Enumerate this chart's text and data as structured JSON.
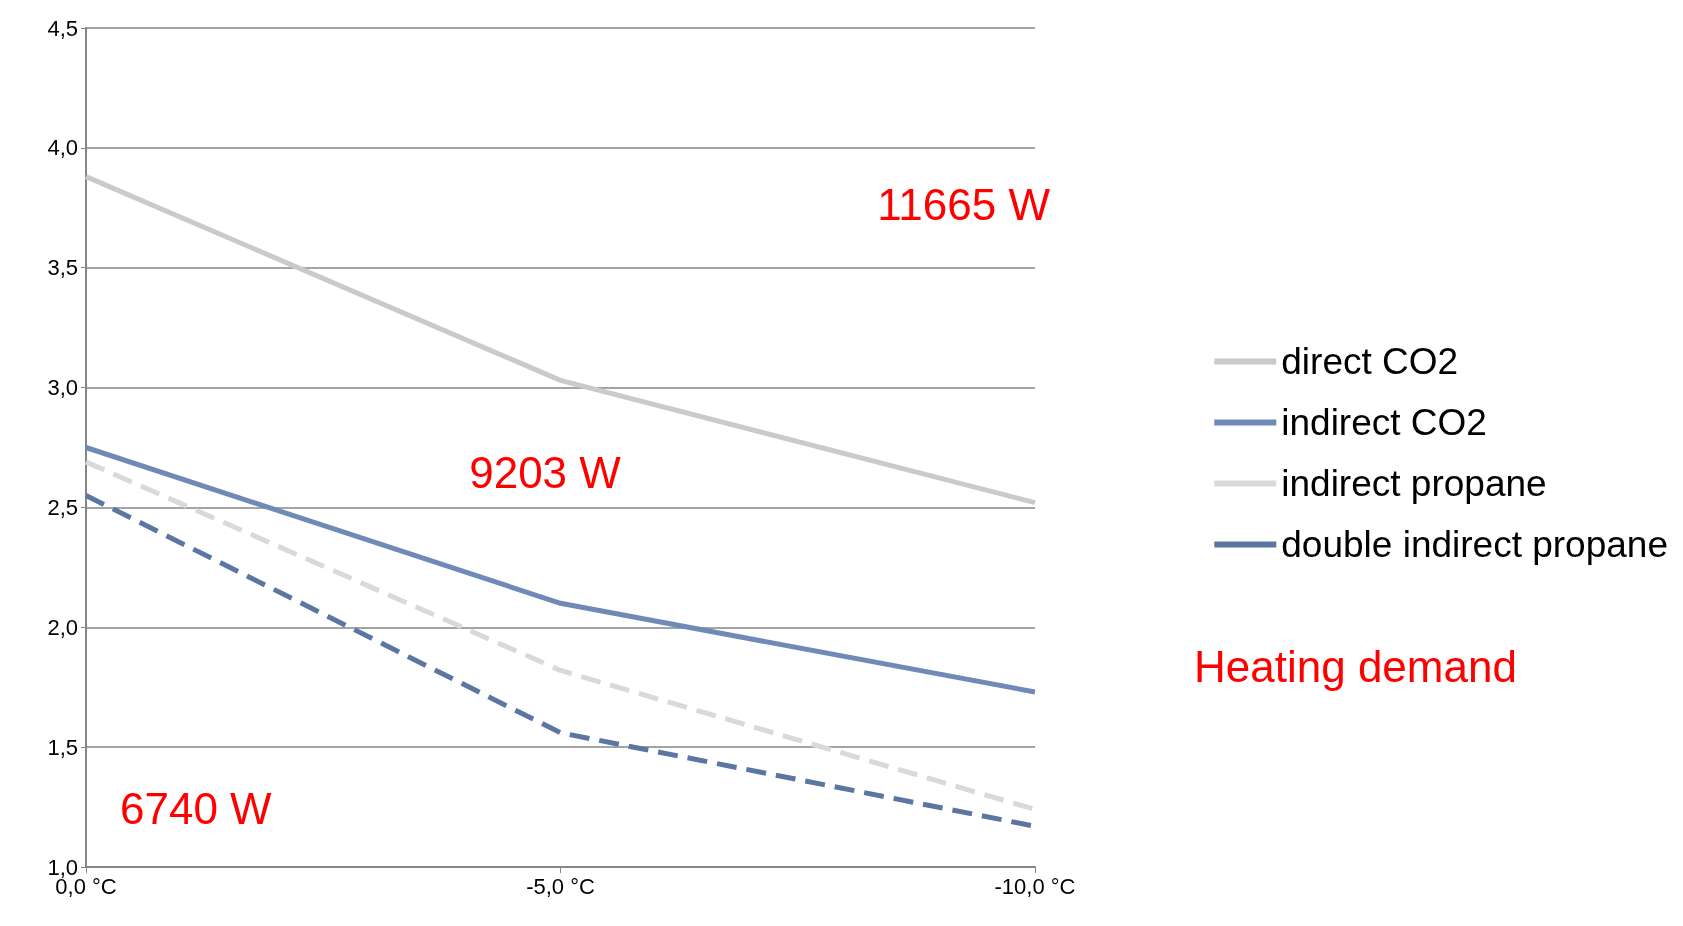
{
  "chart_data": {
    "type": "line",
    "categories": [
      "0,0 °C",
      "-5,0 °C",
      "-10,0 °C"
    ],
    "series": [
      {
        "name": "direct CO2",
        "color": "#c8cbc9",
        "line_style": "solid",
        "values": [
          3.88,
          3.03,
          2.52
        ]
      },
      {
        "name": "indirect CO2",
        "color": "#6f8ab6",
        "line_style": "solid",
        "values": [
          2.75,
          2.1,
          1.73
        ]
      },
      {
        "name": "indirect propane",
        "color": "#d9d9d9",
        "line_style": "dashed",
        "values": [
          2.69,
          1.82,
          1.24
        ]
      },
      {
        "name": "double indirect propane",
        "color": "#5b76a0",
        "line_style": "dashed",
        "values": [
          2.55,
          1.56,
          1.17
        ]
      }
    ],
    "ylim": [
      1,
      4.5
    ],
    "yticks": [
      {
        "value": 1,
        "label": "1,0"
      },
      {
        "value": 1.5,
        "label": "1,5"
      },
      {
        "value": 2,
        "label": "2,0"
      },
      {
        "value": 2.5,
        "label": "2,5"
      },
      {
        "value": 3,
        "label": "3,0"
      },
      {
        "value": 3.5,
        "label": "3,5"
      },
      {
        "value": 4,
        "label": "4,0"
      },
      {
        "value": 4.5,
        "label": "4,5"
      }
    ],
    "grid": "y",
    "legend": "right",
    "marker": "none",
    "annotations": [
      "11665 W",
      "9203 W",
      "6740 W",
      "Heating demand"
    ]
  }
}
